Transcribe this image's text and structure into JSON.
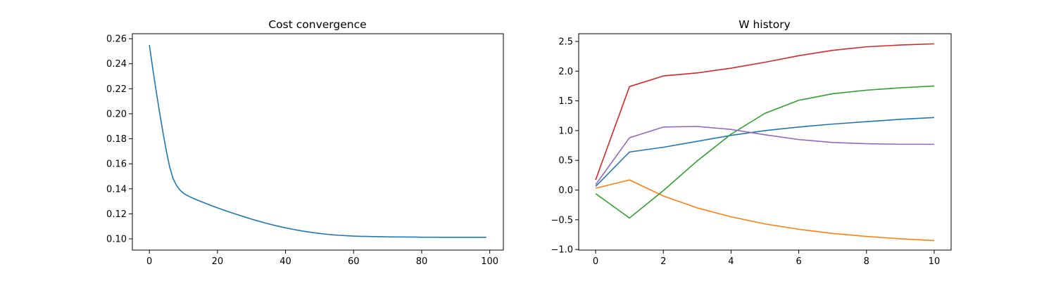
{
  "chart_data": [
    {
      "type": "line",
      "title": "Cost convergence",
      "xlabel": "",
      "ylabel": "",
      "xlim": [
        -5,
        104
      ],
      "ylim": [
        0.091,
        0.264
      ],
      "xticks": [
        0,
        20,
        40,
        60,
        80,
        100
      ],
      "yticks": [
        0.1,
        0.12,
        0.14,
        0.16,
        0.18,
        0.2,
        0.22,
        0.24,
        0.26
      ],
      "ytick_decimals": 2,
      "grid": false,
      "legend": "none",
      "series": [
        {
          "color": "#1f77b4",
          "x": [
            0,
            1,
            2,
            3,
            4,
            5,
            6,
            7,
            8,
            9,
            10,
            11,
            12,
            14,
            16,
            18,
            20,
            22,
            24,
            26,
            28,
            30,
            32,
            34,
            36,
            38,
            40,
            42,
            44,
            46,
            48,
            50,
            52,
            54,
            56,
            58,
            60,
            62,
            64,
            66,
            68,
            70,
            72,
            74,
            76,
            78,
            80,
            82,
            84,
            86,
            88,
            90,
            92,
            94,
            96,
            98,
            99
          ],
          "y": [
            0.255,
            0.236,
            0.218,
            0.201,
            0.185,
            0.17,
            0.157,
            0.148,
            0.1425,
            0.139,
            0.1365,
            0.1348,
            0.1335,
            0.1311,
            0.1289,
            0.1268,
            0.1248,
            0.1229,
            0.121,
            0.1192,
            0.1175,
            0.1158,
            0.1142,
            0.1127,
            0.1113,
            0.11,
            0.1088,
            0.1077,
            0.1067,
            0.1058,
            0.105,
            0.1043,
            0.1037,
            0.1032,
            0.1028,
            0.1025,
            0.1022,
            0.102,
            0.1019,
            0.1018,
            0.1017,
            0.1016,
            0.1015,
            0.1015,
            0.1014,
            0.1014,
            0.1013,
            0.1013,
            0.1013,
            0.1012,
            0.1012,
            0.1012,
            0.1012,
            0.1012,
            0.1012,
            0.1012,
            0.1012
          ]
        }
      ]
    },
    {
      "type": "line",
      "title": "W history",
      "xlabel": "",
      "ylabel": "",
      "xlim": [
        -0.5,
        10.5
      ],
      "ylim": [
        -1.01,
        2.63
      ],
      "xticks": [
        0,
        2,
        4,
        6,
        8,
        10
      ],
      "yticks": [
        -1.0,
        -0.5,
        0.0,
        0.5,
        1.0,
        1.5,
        2.0,
        2.5
      ],
      "ytick_decimals": 1,
      "grid": false,
      "legend": "none",
      "series": [
        {
          "color": "#1f77b4",
          "x": [
            0,
            1,
            2,
            3,
            4,
            5,
            6,
            7,
            8,
            9,
            10
          ],
          "y": [
            0.06,
            0.64,
            0.72,
            0.82,
            0.92,
            1.0,
            1.06,
            1.11,
            1.15,
            1.19,
            1.22
          ]
        },
        {
          "color": "#ff7f0e",
          "x": [
            0,
            1,
            2,
            3,
            4,
            5,
            6,
            7,
            8,
            9,
            10
          ],
          "y": [
            0.03,
            0.17,
            -0.1,
            -0.3,
            -0.45,
            -0.57,
            -0.66,
            -0.73,
            -0.78,
            -0.82,
            -0.85
          ]
        },
        {
          "color": "#2ca02c",
          "x": [
            0,
            1,
            2,
            3,
            4,
            5,
            6,
            7,
            8,
            9,
            10
          ],
          "y": [
            -0.06,
            -0.47,
            -0.01,
            0.49,
            0.94,
            1.29,
            1.51,
            1.62,
            1.68,
            1.72,
            1.75
          ]
        },
        {
          "color": "#d62728",
          "x": [
            0,
            1,
            2,
            3,
            4,
            5,
            6,
            7,
            8,
            9,
            10
          ],
          "y": [
            0.17,
            1.74,
            1.92,
            1.97,
            2.05,
            2.15,
            2.26,
            2.35,
            2.41,
            2.44,
            2.46
          ]
        },
        {
          "color": "#9467bd",
          "x": [
            0,
            1,
            2,
            3,
            4,
            5,
            6,
            7,
            8,
            9,
            10
          ],
          "y": [
            0.09,
            0.88,
            1.06,
            1.07,
            1.02,
            0.93,
            0.85,
            0.8,
            0.78,
            0.77,
            0.77
          ]
        }
      ]
    }
  ]
}
